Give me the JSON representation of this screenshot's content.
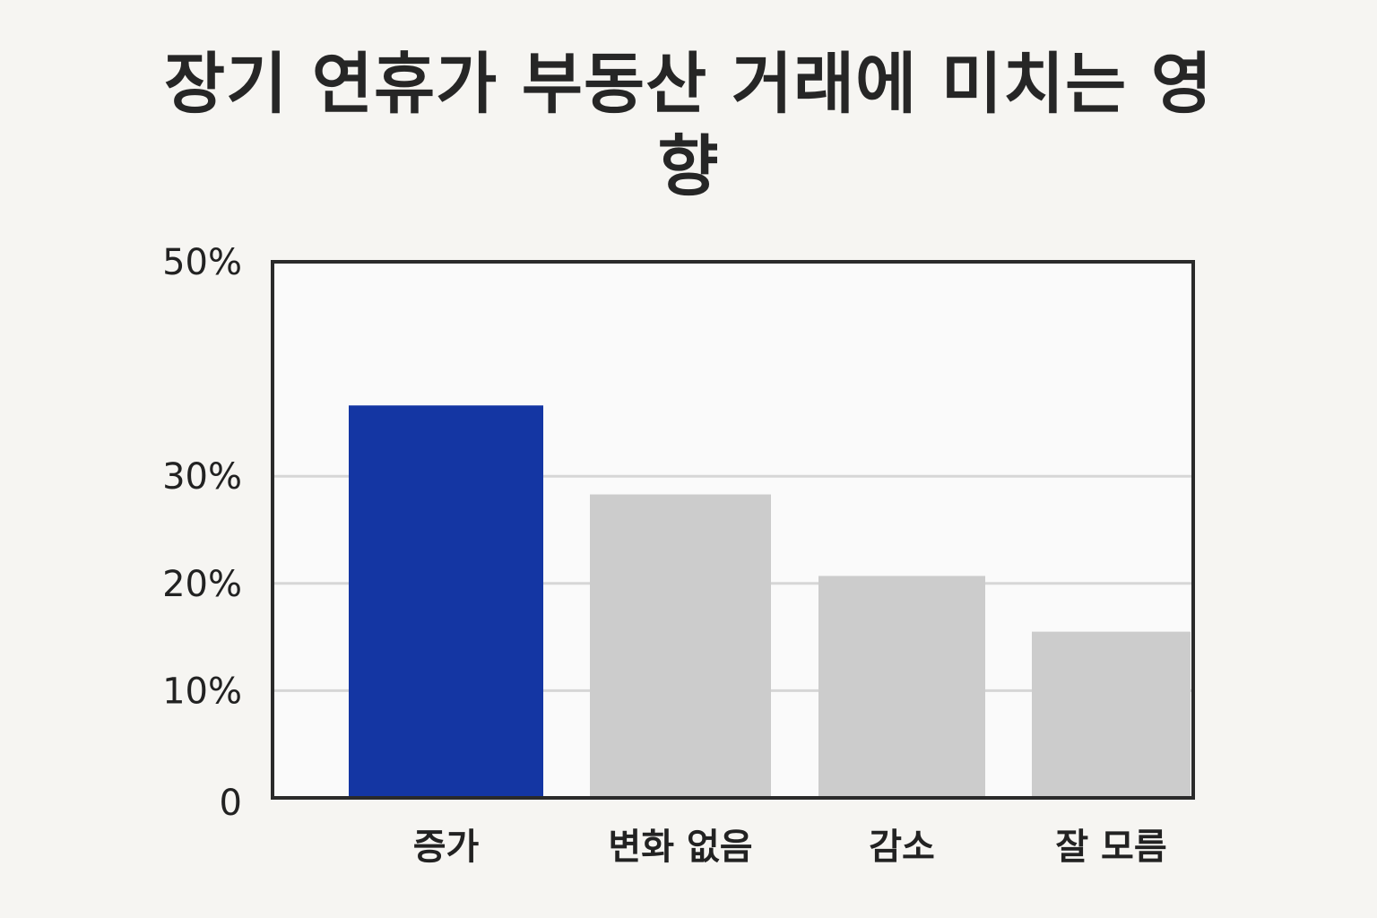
{
  "chart_data": {
    "type": "bar",
    "title": "장기 연휴가 부동산 거래에 미치는 영향",
    "xlabel": "",
    "ylabel": "",
    "categories": [
      "증가",
      "변화 없음",
      "감소",
      "잘 모름"
    ],
    "values": [
      36.6,
      28.3,
      20.7,
      15.5
    ],
    "unit": "%",
    "ylim": [
      0,
      50
    ],
    "y_ticks": [
      {
        "value": 0,
        "label": "0"
      },
      {
        "value": 10,
        "label": "10%"
      },
      {
        "value": 20,
        "label": "20%"
      },
      {
        "value": 30,
        "label": "30%"
      },
      {
        "value": 50,
        "label": "50%"
      }
    ],
    "gridlines": [
      10,
      20,
      30
    ],
    "grid": true,
    "legend": "none",
    "bar_colors": [
      "#1436a3",
      "#cccccc",
      "#cccccc",
      "#cccccc"
    ],
    "colors": {
      "background": "#f6f5f2",
      "plot_background": "#fafafa",
      "frame": "#2a2a2a",
      "grid": "#d6d6d6",
      "highlight": "#1436a3",
      "muted": "#cccccc"
    }
  }
}
